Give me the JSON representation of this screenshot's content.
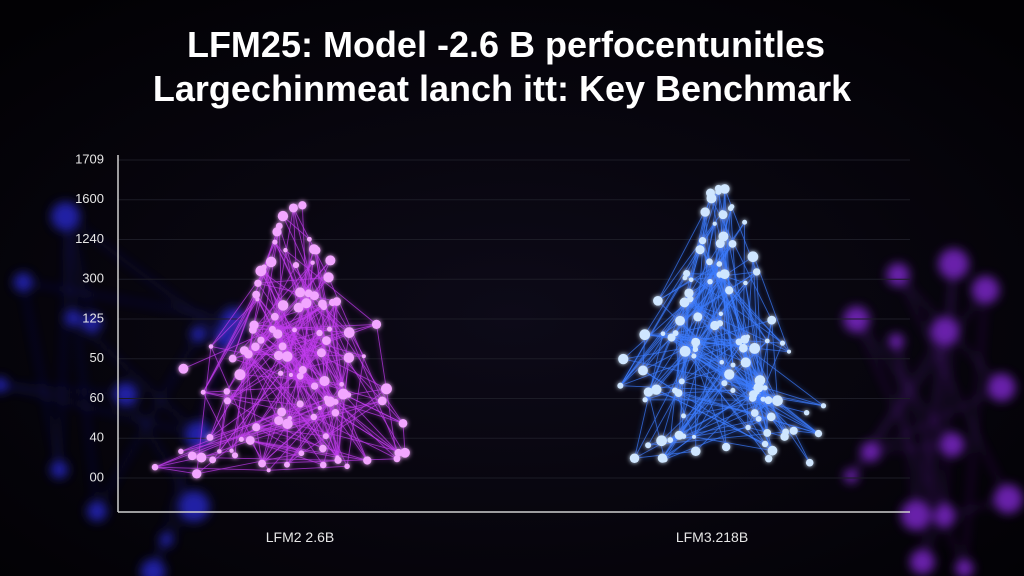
{
  "header": {
    "title_lines": [
      "LFM25: Model -2.6 B perfocentunitles",
      "Largechinmeat lanch itt: Key Benchmark"
    ]
  },
  "axis": {
    "tick_labels": [
      "1709",
      "1600",
      "1240",
      "300",
      "125",
      "50",
      "60",
      "40",
      "00"
    ]
  },
  "groups": [
    {
      "label": "LFM2 2.6B"
    },
    {
      "label": "LFM3.218B"
    }
  ]
}
